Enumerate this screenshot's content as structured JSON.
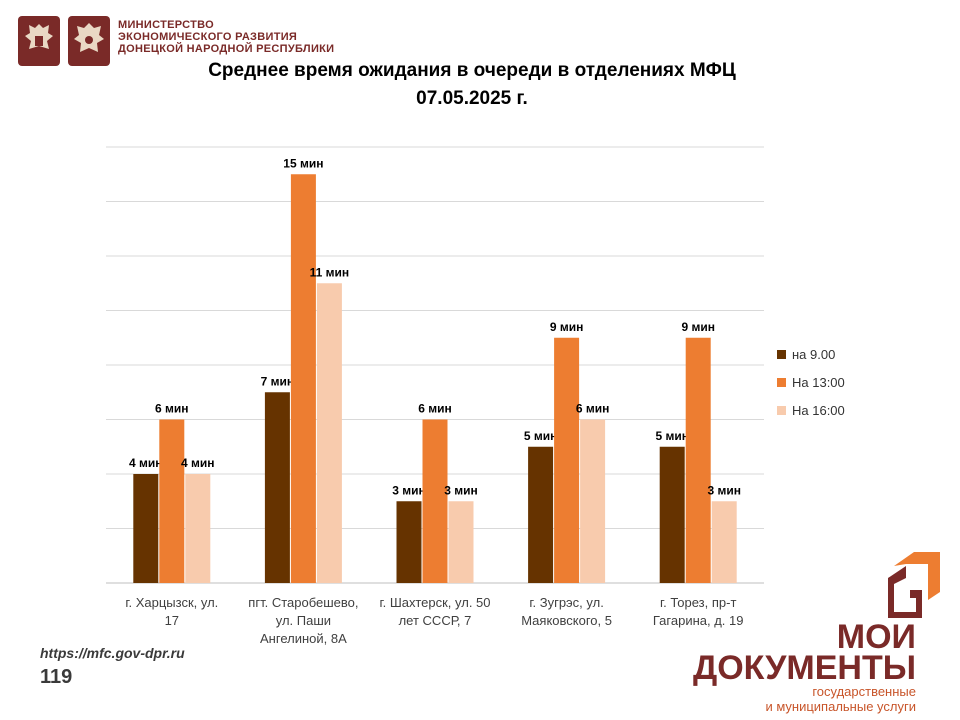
{
  "header": {
    "ministry_lines": [
      "МИНИСТЕРСТВО",
      "ЭКОНОМИЧЕСКОГО РАЗВИТИЯ",
      "ДОНЕЦКОЙ НАРОДНОЙ РЕСПУБЛИКИ"
    ]
  },
  "colors": {
    "brand": "#7a2a28",
    "accent": "#ed7d31",
    "gridline": "#d9d9d9"
  },
  "chart_data": {
    "type": "bar",
    "title": "Среднее время ожидания в очереди в отделениях МФЦ",
    "subtitle": "07.05.2025   г.",
    "categories": [
      [
        "г. Харцызск, ул.",
        "17"
      ],
      [
        "пгт. Старобешево,",
        "ул. Паши",
        "Ангелиной, 8А"
      ],
      [
        "г. Шахтерск, ул. 50",
        "лет СССР, 7"
      ],
      [
        "г. Зугрэс, ул.",
        "Маяковского, 5"
      ],
      [
        "г. Торез, пр-т",
        "Гагарина, д. 19"
      ]
    ],
    "series": [
      {
        "name": "на 9.00",
        "color": "#663300",
        "values": [
          4,
          7,
          3,
          5,
          5
        ],
        "labels": [
          "4 мин",
          "7 мин",
          "3 мин",
          "5 мин",
          "5 мин"
        ]
      },
      {
        "name": "На 13:00",
        "color": "#ed7d31",
        "values": [
          6,
          15,
          6,
          9,
          9
        ],
        "labels": [
          "6 мин",
          "15 мин",
          "6 мин",
          "9 мин",
          "9 мин"
        ]
      },
      {
        "name": "На 16:00",
        "color": "#f8cbad",
        "values": [
          4,
          11,
          3,
          6,
          3
        ],
        "labels": [
          "4 мин",
          "11 мин",
          "3 мин",
          "6 мин",
          "3 мин"
        ]
      }
    ],
    "ylim": [
      0,
      16
    ],
    "grid": true,
    "legend_position": "right"
  },
  "footer": {
    "website": "https://mfc.gov-dpr.ru",
    "page_number": "119"
  },
  "brand": {
    "line1": "МОИ",
    "line2": "ДОКУМЕНТЫ",
    "sub1": "государственные",
    "sub2": "и муниципальные услуги"
  }
}
